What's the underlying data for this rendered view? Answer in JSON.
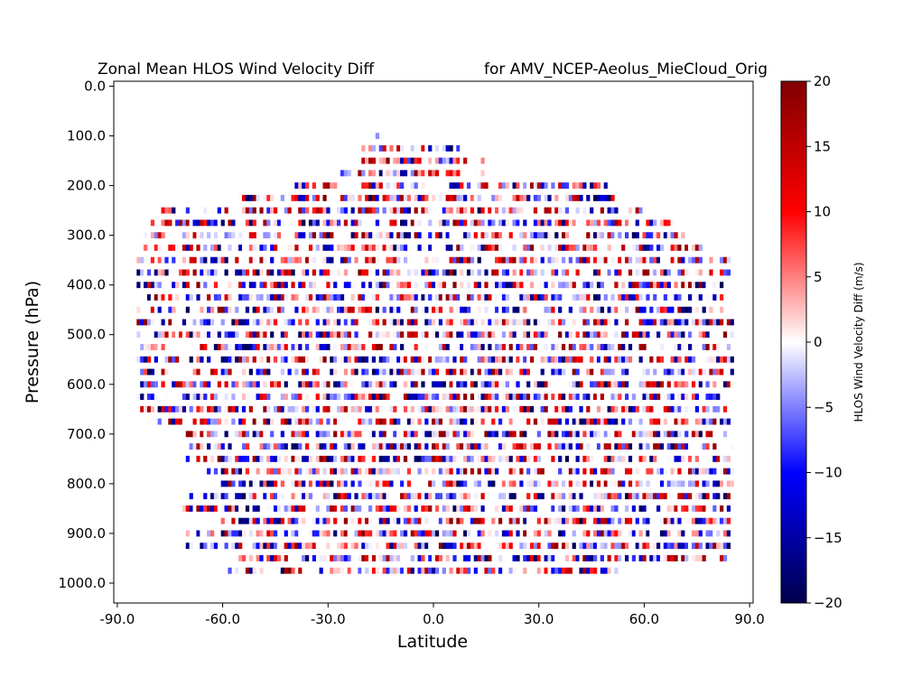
{
  "chart_data": {
    "type": "heatmap",
    "title_left": "Zonal Mean HLOS Wind Velocity Diff",
    "title_right": "for AMV_NCEP-Aeolus_MieCloud_Orig",
    "xlabel": "Latitude",
    "ylabel": "Pressure (hPa)",
    "xlim": [
      -91,
      91
    ],
    "ylim": [
      1040,
      -10
    ],
    "y_inverted": true,
    "xticks": [
      -90,
      -60,
      -30,
      0,
      30,
      60,
      90
    ],
    "xtick_labels": [
      "-90.0",
      "-60.0",
      "-30.0",
      "0.0",
      "30.0",
      "60.0",
      "90.0"
    ],
    "yticks": [
      0,
      100,
      200,
      300,
      400,
      500,
      600,
      700,
      800,
      900,
      1000
    ],
    "ytick_labels": [
      "0.0",
      "100.0",
      "200.0",
      "300.0",
      "400.0",
      "500.0",
      "600.0",
      "700.0",
      "800.0",
      "900.0",
      "1000.0"
    ],
    "colorbar": {
      "label": "HLOS Wind Velocity Diff (m/s)",
      "vmin": -20,
      "vmax": 20,
      "ticks": [
        -20,
        -15,
        -10,
        -5,
        0,
        5,
        10,
        15,
        20
      ],
      "tick_labels": [
        "−20",
        "−15",
        "−10",
        "−5",
        "0",
        "5",
        "10",
        "15",
        "20"
      ],
      "colormap": "seismic",
      "colors": {
        "min": "#00004c",
        "low": "#0000ff",
        "mid": "#ffffff",
        "high": "#ff0000",
        "max": "#800000"
      }
    },
    "grid": false,
    "cell_size": {
      "latitude_deg": 1.0,
      "pressure_hPa": 25
    },
    "data_note_coverage": [
      {
        "p": 100,
        "lat": [
          -16,
          -16
        ]
      },
      {
        "p": 125,
        "lat": [
          -20,
          8
        ]
      },
      {
        "p": 150,
        "lat": [
          -20,
          14
        ]
      },
      {
        "p": 175,
        "lat": [
          -26,
          17
        ]
      },
      {
        "p": 200,
        "lat": [
          -40,
          50
        ]
      },
      {
        "p": 225,
        "lat": [
          -55,
          53
        ]
      },
      {
        "p": 250,
        "lat": [
          -77,
          60
        ]
      },
      {
        "p": 275,
        "lat": [
          -80,
          68
        ]
      },
      {
        "p": 300,
        "lat": [
          -82,
          72
        ]
      },
      {
        "p": 325,
        "lat": [
          -83,
          76
        ]
      },
      {
        "p": 350,
        "lat": [
          -84,
          84
        ]
      },
      {
        "p": 375,
        "lat": [
          -84,
          84
        ]
      },
      {
        "p": 400,
        "lat": [
          -84,
          82
        ]
      },
      {
        "p": 425,
        "lat": [
          -84,
          82
        ]
      },
      {
        "p": 450,
        "lat": [
          -84,
          82
        ]
      },
      {
        "p": 475,
        "lat": [
          -84,
          85
        ]
      },
      {
        "p": 500,
        "lat": [
          -84,
          85
        ]
      },
      {
        "p": 525,
        "lat": [
          -84,
          84
        ]
      },
      {
        "p": 550,
        "lat": [
          -84,
          85
        ]
      },
      {
        "p": 575,
        "lat": [
          -84,
          85
        ]
      },
      {
        "p": 600,
        "lat": [
          -84,
          85
        ]
      },
      {
        "p": 625,
        "lat": [
          -84,
          84
        ]
      },
      {
        "p": 650,
        "lat": [
          -83,
          84
        ]
      },
      {
        "p": 675,
        "lat": [
          -83,
          84
        ]
      },
      {
        "p": 700,
        "lat": [
          -70,
          84
        ]
      },
      {
        "p": 725,
        "lat": [
          -72,
          85
        ]
      },
      {
        "p": 750,
        "lat": [
          -70,
          85
        ]
      },
      {
        "p": 775,
        "lat": [
          -65,
          85
        ]
      },
      {
        "p": 800,
        "lat": [
          -60,
          85
        ]
      },
      {
        "p": 825,
        "lat": [
          -70,
          84
        ]
      },
      {
        "p": 850,
        "lat": [
          -72,
          84
        ]
      },
      {
        "p": 875,
        "lat": [
          -60,
          84
        ]
      },
      {
        "p": 900,
        "lat": [
          -70,
          84
        ]
      },
      {
        "p": 925,
        "lat": [
          -70,
          84
        ]
      },
      {
        "p": 950,
        "lat": [
          -55,
          84
        ]
      },
      {
        "p": 975,
        "lat": [
          -58,
          52
        ]
      }
    ]
  }
}
